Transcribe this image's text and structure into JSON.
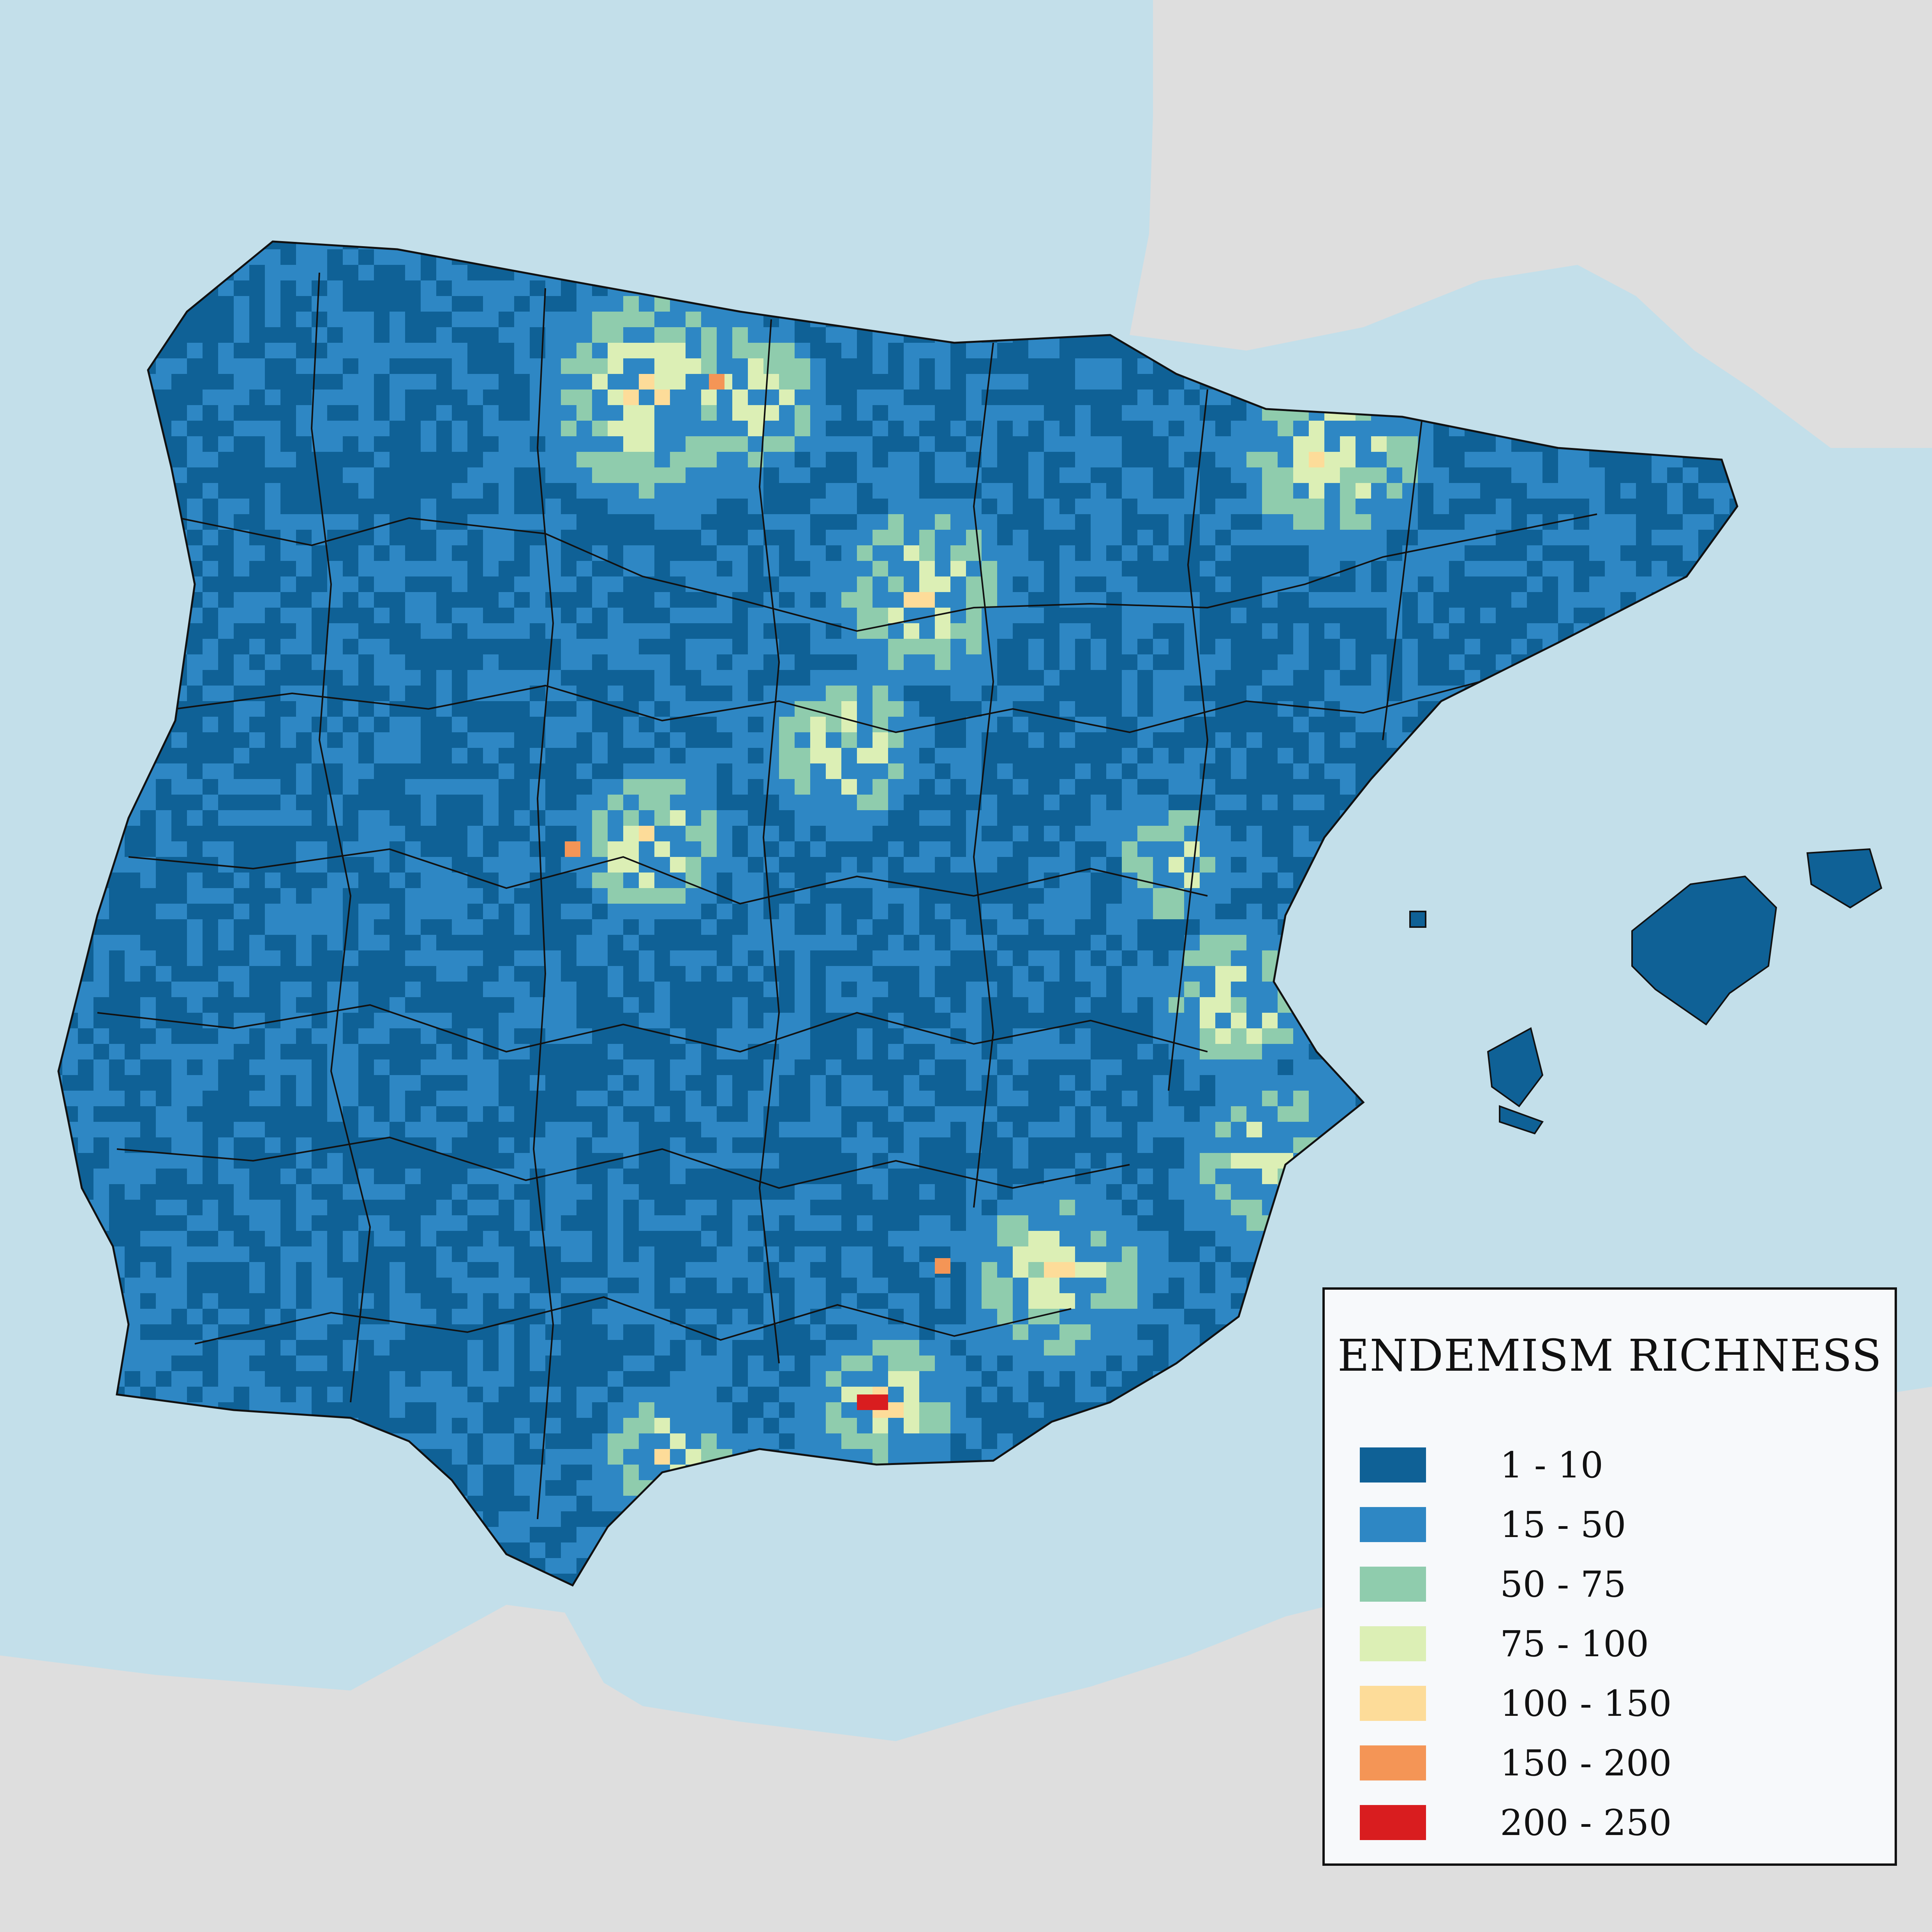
{
  "map": {
    "colors": {
      "sea": "#c3dfea",
      "neighbor_land": "#dedede",
      "no_data": "#e5e5e5",
      "border": "#111111"
    },
    "regions": [
      "iberian-peninsula",
      "france",
      "north-africa",
      "balearic-islands"
    ]
  },
  "legend": {
    "title": "ENDEMISM RICHNESS",
    "classes": [
      {
        "label": "1 - 10",
        "color": "#0f6196"
      },
      {
        "label": "15 - 50",
        "color": "#2e87c4"
      },
      {
        "label": "50 - 75",
        "color": "#8fccad"
      },
      {
        "label": "75 - 100",
        "color": "#dcefb5"
      },
      {
        "label": "100 - 150",
        "color": "#fddc99"
      },
      {
        "label": "150 - 200",
        "color": "#f49556"
      },
      {
        "label": "200 - 250",
        "color": "#d91d1f"
      }
    ]
  }
}
